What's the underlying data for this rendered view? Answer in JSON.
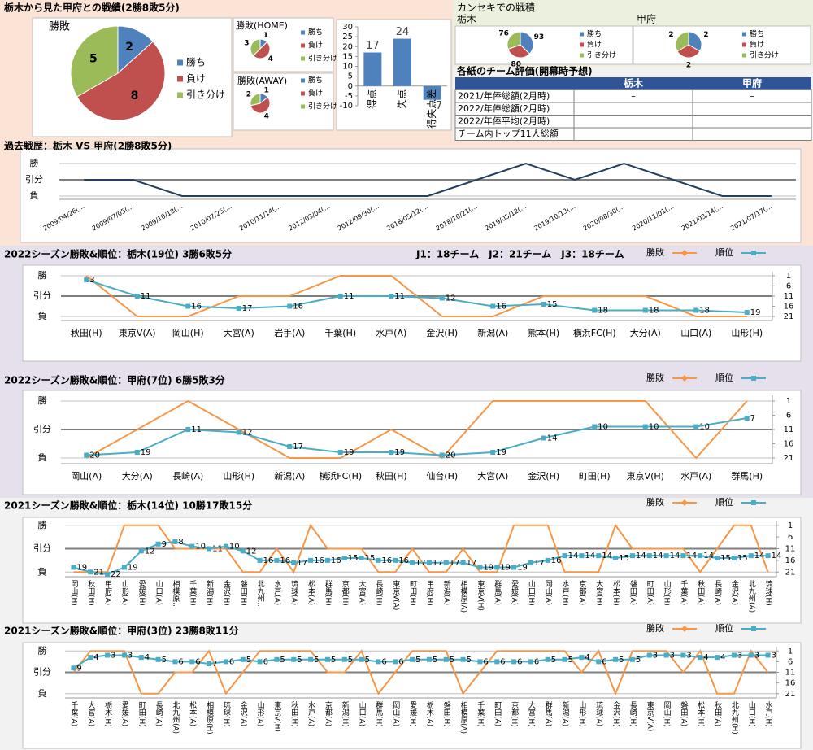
{
  "summary": {
    "title": "栃木から見た甲府との戦績(2勝8敗5分)"
  },
  "kanseki": {
    "title": "カンセキでの戦積"
  },
  "table": {
    "title": "各紙のチーム評価(開幕時予想)",
    "columns": [
      "栃木",
      "甲府"
    ],
    "rows": [
      [
        "2021/年俸総額(2月時)",
        "–",
        "–"
      ],
      [
        "2022/年俸総額(2月時)"
      ],
      [
        "2022/年俸平均(2月時)"
      ],
      [
        "チーム内トップ11人総額"
      ]
    ]
  },
  "chart_data": [
    {
      "type": "pie",
      "title": "勝敗",
      "categories": [
        "勝ち",
        "負け",
        "引き分け"
      ],
      "values": [
        2,
        8,
        5
      ],
      "colors": [
        "#4f81bd",
        "#c0504d",
        "#9bbb59"
      ]
    },
    {
      "type": "pie",
      "title": "勝敗(HOME)",
      "categories": [
        "勝ち",
        "負け",
        "引き分け"
      ],
      "values": [
        1,
        4,
        3
      ],
      "colors": [
        "#4f81bd",
        "#c0504d",
        "#9bbb59"
      ]
    },
    {
      "type": "pie",
      "title": "勝敗(AWAY)",
      "categories": [
        "勝ち",
        "負け",
        "引き分け"
      ],
      "values": [
        1,
        4,
        2
      ],
      "colors": [
        "#4f81bd",
        "#c0504d",
        "#9bbb59"
      ]
    },
    {
      "type": "bar",
      "categories": [
        "得点",
        "失点",
        "得失点差"
      ],
      "values": [
        17,
        24,
        -7
      ],
      "color": "#4f81bd",
      "ylim": [
        -10,
        30
      ],
      "yticks": [
        -10,
        -5,
        0,
        5,
        10,
        15,
        20,
        25,
        30
      ]
    },
    {
      "type": "pie",
      "title": "栃木",
      "categories": [
        "勝ち",
        "負け",
        "引き分け"
      ],
      "values": [
        93,
        80,
        76
      ],
      "colors": [
        "#4f81bd",
        "#c0504d",
        "#9bbb59"
      ]
    },
    {
      "type": "pie",
      "title": "甲府",
      "categories": [
        "勝ち",
        "負け",
        "引き分け"
      ],
      "values": [
        2,
        2,
        2
      ],
      "colors": [
        "#4f81bd",
        "#c0504d",
        "#9bbb59"
      ]
    },
    {
      "type": "line",
      "title": "過去戦歴：栃木 VS 甲府(2勝8敗5分)",
      "categories": [
        "2009/04/26(…",
        "2009/07/05(…",
        "2009/10/18(…",
        "2010/07/25(…",
        "2010/11/14(…",
        "2012/03/04(…",
        "2012/09/30(…",
        "2018/05/12(…",
        "2018/10/21(…",
        "2019/05/12(…",
        "2019/10/13(…",
        "2020/08/30(…",
        "2020/11/01(…",
        "2021/03/14(…",
        "2021/07/17(…"
      ],
      "values": [
        0,
        0,
        -1,
        -1,
        -1,
        -1,
        -1,
        -1,
        0,
        1,
        0,
        1,
        0,
        -1,
        -1
      ],
      "color": "#243f60",
      "ylim": [
        -1.2,
        1.2
      ],
      "yticks": [
        {
          "value": 1,
          "label": "勝"
        },
        {
          "value": 0,
          "label": "引分"
        },
        {
          "value": -1,
          "label": "負"
        }
      ],
      "grid": true
    },
    {
      "type": "combo",
      "title": "2022シーズン勝敗&順位：栃木(19位) 3勝6敗5分",
      "note": "J1：18チーム　J2：21チーム　J3：18チーム",
      "categories": [
        "秋田(H)",
        "東京V(A)",
        "岡山(H)",
        "大宮(A)",
        "岩手(A)",
        "千葉(H)",
        "水戸(A)",
        "金沢(H)",
        "新潟(A)",
        "熊本(H)",
        "横浜FC(H)",
        "大分(A)",
        "山口(A)",
        "山形(H)"
      ],
      "series": [
        {
          "name": "勝敗",
          "color": "#f79646",
          "values": [
            1,
            -1,
            -1,
            0,
            0,
            1,
            1,
            -1,
            -1,
            0,
            0,
            0,
            -1,
            -1
          ]
        },
        {
          "name": "順位",
          "color": "#4bacc6",
          "axis": "y2",
          "values": [
            3,
            11,
            16,
            17,
            16,
            11,
            11,
            12,
            16,
            15,
            18,
            18,
            18,
            19
          ]
        }
      ],
      "ylim": [
        -1.2,
        1.2
      ],
      "yticks": [
        {
          "value": 1,
          "label": "勝"
        },
        {
          "value": 0,
          "label": "引分"
        },
        {
          "value": -1,
          "label": "負"
        }
      ],
      "y2lim": [
        23,
        -1
      ],
      "y2ticks": [
        1,
        6,
        11,
        16,
        21
      ],
      "grid": true
    },
    {
      "type": "combo",
      "title": "2022シーズン勝敗&順位：甲府(7位) 6勝5敗3分",
      "categories": [
        "岡山(A)",
        "大分(A)",
        "長崎(A)",
        "山形(H)",
        "新潟(A)",
        "横浜FC(H)",
        "秋田(H)",
        "仙台(H)",
        "大宮(A)",
        "金沢(H)",
        "町田(H)",
        "東京V(H)",
        "水戸(A)",
        "群馬(H)"
      ],
      "series": [
        {
          "name": "勝敗",
          "color": "#f79646",
          "values": [
            -1,
            0,
            1,
            0,
            -1,
            -1,
            0,
            -1,
            1,
            1,
            1,
            1,
            -1,
            1
          ]
        },
        {
          "name": "順位",
          "color": "#4bacc6",
          "axis": "y2",
          "values": [
            20,
            19,
            11,
            12,
            17,
            19,
            19,
            20,
            19,
            14,
            10,
            10,
            10,
            7
          ]
        }
      ],
      "ylim": [
        -1.2,
        1.2
      ],
      "yticks": [
        {
          "value": 1,
          "label": "勝"
        },
        {
          "value": 0,
          "label": "引分"
        },
        {
          "value": -1,
          "label": "負"
        }
      ],
      "y2lim": [
        23,
        -1
      ],
      "y2ticks": [
        1,
        6,
        11,
        16,
        21
      ],
      "grid": true
    },
    {
      "type": "combo",
      "title": "2021シーズン勝敗&順位：栃木(14位) 10勝17敗15分",
      "categories": [
        "岡山(H)",
        "秋田(H)",
        "甲府(A)",
        "山形(A)",
        "愛媛(H)",
        "山口(A)",
        "相模原…",
        "千葉(H)",
        "新潟(H)",
        "金沢(H)",
        "磐田(H)",
        "北九州…",
        "水戸(A)",
        "琉球(A)",
        "松本(A)",
        "群馬(H)",
        "京都(H)",
        "大宮(A)",
        "長崎(H)",
        "東京V(A)",
        "町田(H)",
        "甲府(H)",
        "新潟(A)",
        "相模原(A)",
        "東京V(H)",
        "群馬(A)",
        "愛媛(A)",
        "山口(H)",
        "岡山(A)",
        "水戸(H)",
        "京都(A)",
        "大宮(H)",
        "松本(H)",
        "磐田(A)",
        "町田(A)",
        "山形(H)",
        "千葉(A)",
        "秋田(A)",
        "長崎(A)",
        "金沢(A)",
        "北九州(A)",
        "琉球(H)"
      ],
      "series": [
        {
          "name": "勝敗",
          "color": "#f79646",
          "values": [
            -1,
            -1,
            -1,
            1,
            1,
            1,
            0,
            0,
            0,
            0,
            -1,
            -1,
            0,
            -1,
            1,
            0,
            0,
            0,
            -1,
            -1,
            0,
            -1,
            -1,
            0,
            -1,
            -1,
            1,
            1,
            1,
            -1,
            -1,
            -1,
            1,
            0,
            0,
            0,
            0,
            -1,
            0,
            1,
            1,
            -1
          ]
        },
        {
          "name": "順位",
          "color": "#4bacc6",
          "axis": "y2",
          "values": [
            19,
            21,
            22,
            19,
            12,
            9,
            8,
            10,
            11,
            10,
            12,
            16,
            16,
            17,
            16,
            16,
            15,
            15,
            16,
            16,
            17,
            17,
            17,
            17,
            19,
            19,
            19,
            17,
            16,
            14,
            14,
            14,
            15,
            14,
            14,
            14,
            14,
            14,
            15,
            15,
            14,
            14
          ]
        }
      ],
      "ylim": [
        -1.2,
        1.2
      ],
      "yticks": [
        {
          "value": 1,
          "label": "勝"
        },
        {
          "value": 0,
          "label": "引分"
        },
        {
          "value": -1,
          "label": "負"
        }
      ],
      "y2lim": [
        23,
        -1
      ],
      "y2ticks": [
        1,
        6,
        11,
        16,
        21
      ],
      "grid": true
    },
    {
      "type": "combo",
      "title": "2021シーズン勝敗&順位：甲府(3位) 23勝8敗11分",
      "categories": [
        "千葉(A)",
        "大宮(A)",
        "栃木(H)",
        "愛媛(A)",
        "町田(H)",
        "長崎(A)",
        "北九州(A)",
        "松本(A)",
        "相模原(H)",
        "琉球(H)",
        "金沢(A)",
        "山形(A)",
        "東京V(H)",
        "秋田(H)",
        "水戸(A)",
        "京都(A)",
        "新潟(H)",
        "山口(A)",
        "群馬(H)",
        "岡山(A)",
        "愛媛(H)",
        "栃木(A)",
        "磐田(H)",
        "相模原(A)",
        "千葉(H)",
        "町田(A)",
        "京都(H)",
        "大宮(H)",
        "群馬(A)",
        "新潟(A)",
        "山形(H)",
        "琉球(A)",
        "金沢(H)",
        "長崎(H)",
        "東京V(A)",
        "岡山(H)",
        "磐田(A)",
        "松本(H)",
        "秋田(A)",
        "北九州(H)",
        "山口(H)",
        "水戸(H)"
      ],
      "series": [
        {
          "name": "勝敗",
          "color": "#f79646",
          "values": [
            0,
            1,
            1,
            1,
            -1,
            -1,
            0,
            0,
            1,
            -1,
            0,
            1,
            1,
            1,
            1,
            0,
            0,
            1,
            -1,
            0,
            1,
            1,
            1,
            -1,
            0,
            1,
            1,
            1,
            1,
            1,
            0,
            1,
            -1,
            1,
            1,
            1,
            0,
            1,
            -1,
            -1,
            1,
            0
          ]
        },
        {
          "name": "順位",
          "color": "#4bacc6",
          "axis": "y2",
          "values": [
            9,
            4,
            3,
            3,
            4,
            5,
            6,
            6,
            7,
            6,
            5,
            6,
            5,
            5,
            5,
            5,
            5,
            5,
            6,
            6,
            5,
            5,
            5,
            5,
            6,
            6,
            6,
            6,
            5,
            5,
            4,
            6,
            5,
            5,
            3,
            3,
            3,
            4,
            4,
            3,
            3,
            3
          ]
        }
      ],
      "ylim": [
        -1.2,
        1.2
      ],
      "yticks": [
        {
          "value": 1,
          "label": "勝"
        },
        {
          "value": 0,
          "label": "引分"
        },
        {
          "value": -1,
          "label": "負"
        }
      ],
      "y2lim": [
        23,
        -1
      ],
      "y2ticks": [
        1,
        6,
        11,
        16,
        21
      ],
      "grid": true
    }
  ]
}
